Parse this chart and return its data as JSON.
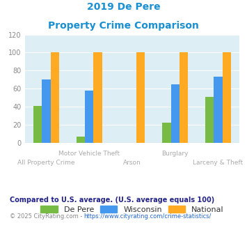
{
  "title_line1": "2019 De Pere",
  "title_line2": "Property Crime Comparison",
  "title_color": "#1a8fd1",
  "categories": [
    "All Property Crime",
    "Motor Vehicle Theft",
    "Arson",
    "Burglary",
    "Larceny & Theft"
  ],
  "de_pere": [
    41,
    7,
    0,
    22,
    51
  ],
  "wisconsin": [
    70,
    58,
    0,
    65,
    73
  ],
  "national": [
    100,
    100,
    100,
    100,
    100
  ],
  "de_pere_color": "#77bb44",
  "wisconsin_color": "#4499ee",
  "national_color": "#ffaa22",
  "ylim": [
    0,
    120
  ],
  "yticks": [
    0,
    20,
    40,
    60,
    80,
    100,
    120
  ],
  "plot_bg_color": "#ddeef5",
  "legend_labels": [
    "De Pere",
    "Wisconsin",
    "National"
  ],
  "footnote1": "Compared to U.S. average. (U.S. average equals 100)",
  "footnote2": "© 2025 CityRating.com - https://www.cityrating.com/crime-statistics/",
  "footnote1_color": "#222288",
  "footnote2_color": "#888888",
  "url_color": "#2266cc",
  "xlabel_color": "#aaaaaa",
  "grid_color": "#ffffff"
}
